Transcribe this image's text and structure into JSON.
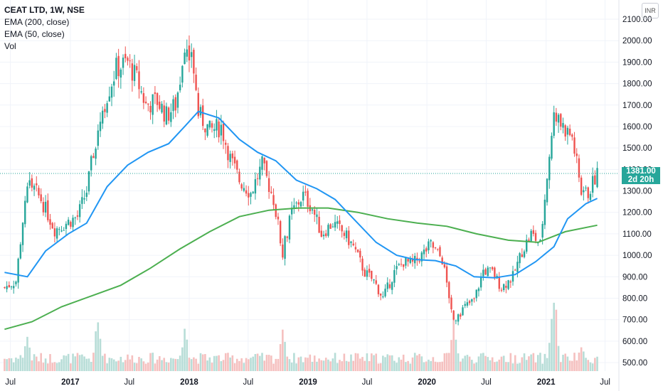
{
  "legend": {
    "title": "CEAT LTD, 1W, NSE",
    "ema200": "EMA (200, close)",
    "ema50": "EMA (50, close)",
    "vol": "Vol"
  },
  "currency": "INR",
  "last_price": {
    "value": "1381.00",
    "countdown": "2d 20h"
  },
  "colors": {
    "up": "#26a69a",
    "down": "#ef5350",
    "ema50": "#2196f3",
    "ema200": "#4caf50",
    "vol_up": "#b7ddd7",
    "vol_down": "#f5c0bf",
    "last_price_line": "#26a69a"
  },
  "chart_data": {
    "type": "candlestick",
    "title": "CEAT LTD, 1W, NSE",
    "ylim": [
      460,
      2140
    ],
    "y_ticks": [
      "2100.00",
      "2000.00",
      "1900.00",
      "1800.00",
      "1700.00",
      "1600.00",
      "1500.00",
      "1400.00",
      "1300.00",
      "1200.00",
      "1100.00",
      "1000.00",
      "900.00",
      "800.00",
      "700.00",
      "600.00",
      "500.00"
    ],
    "x_ticks": [
      "Jul",
      "2017",
      "Jul",
      "2018",
      "Jul",
      "2019",
      "Jul",
      "2020",
      "Jul",
      "2021",
      "Jul"
    ],
    "x_tick_dates": [
      "2016-07-01",
      "2017-01-01",
      "2017-07-01",
      "2018-01-01",
      "2018-07-01",
      "2019-01-01",
      "2019-07-01",
      "2020-01-01",
      "2020-07-01",
      "2021-01-01",
      "2021-07-01"
    ],
    "closes": [
      {
        "date": "2016-06-13",
        "close": 850
      },
      {
        "date": "2016-07-18",
        "close": 880
      },
      {
        "date": "2016-08-22",
        "close": 1350
      },
      {
        "date": "2016-10-03",
        "close": 1260
      },
      {
        "date": "2016-11-14",
        "close": 1120
      },
      {
        "date": "2016-12-19",
        "close": 1150
      },
      {
        "date": "2017-01-23",
        "close": 1180
      },
      {
        "date": "2017-02-20",
        "close": 1300
      },
      {
        "date": "2017-03-27",
        "close": 1600
      },
      {
        "date": "2017-04-24",
        "close": 1750
      },
      {
        "date": "2017-05-22",
        "close": 1870
      },
      {
        "date": "2017-06-26",
        "close": 1900
      },
      {
        "date": "2017-07-24",
        "close": 1820
      },
      {
        "date": "2017-08-21",
        "close": 1700
      },
      {
        "date": "2017-09-25",
        "close": 1720
      },
      {
        "date": "2017-10-23",
        "close": 1650
      },
      {
        "date": "2017-11-20",
        "close": 1700
      },
      {
        "date": "2017-12-18",
        "close": 1950
      },
      {
        "date": "2018-01-08",
        "close": 1960
      },
      {
        "date": "2018-01-29",
        "close": 1660
      },
      {
        "date": "2018-03-05",
        "close": 1580
      },
      {
        "date": "2018-04-09",
        "close": 1600
      },
      {
        "date": "2018-05-07",
        "close": 1450
      },
      {
        "date": "2018-06-04",
        "close": 1350
      },
      {
        "date": "2018-07-09",
        "close": 1290
      },
      {
        "date": "2018-08-13",
        "close": 1420
      },
      {
        "date": "2018-09-17",
        "close": 1260
      },
      {
        "date": "2018-10-15",
        "close": 1020
      },
      {
        "date": "2018-11-12",
        "close": 1200
      },
      {
        "date": "2018-12-17",
        "close": 1280
      },
      {
        "date": "2019-01-14",
        "close": 1220
      },
      {
        "date": "2019-02-11",
        "close": 1100
      },
      {
        "date": "2019-03-18",
        "close": 1150
      },
      {
        "date": "2019-04-22",
        "close": 1100
      },
      {
        "date": "2019-05-20",
        "close": 1040
      },
      {
        "date": "2019-06-24",
        "close": 920
      },
      {
        "date": "2019-07-22",
        "close": 880
      },
      {
        "date": "2019-08-19",
        "close": 800
      },
      {
        "date": "2019-09-23",
        "close": 920
      },
      {
        "date": "2019-10-21",
        "close": 970
      },
      {
        "date": "2019-11-18",
        "close": 960
      },
      {
        "date": "2019-12-16",
        "close": 1000
      },
      {
        "date": "2020-01-13",
        "close": 1050
      },
      {
        "date": "2020-02-17",
        "close": 980
      },
      {
        "date": "2020-03-23",
        "close": 700
      },
      {
        "date": "2020-04-27",
        "close": 760
      },
      {
        "date": "2020-05-25",
        "close": 790
      },
      {
        "date": "2020-06-22",
        "close": 930
      },
      {
        "date": "2020-07-20",
        "close": 920
      },
      {
        "date": "2020-08-17",
        "close": 850
      },
      {
        "date": "2020-09-21",
        "close": 900
      },
      {
        "date": "2020-10-19",
        "close": 1020
      },
      {
        "date": "2020-11-16",
        "close": 1100
      },
      {
        "date": "2020-12-14",
        "close": 1050
      },
      {
        "date": "2021-01-11",
        "close": 1480
      },
      {
        "date": "2021-01-25",
        "close": 1650
      },
      {
        "date": "2021-02-22",
        "close": 1600
      },
      {
        "date": "2021-03-22",
        "close": 1550
      },
      {
        "date": "2021-04-19",
        "close": 1300
      },
      {
        "date": "2021-05-10",
        "close": 1290
      },
      {
        "date": "2021-06-07",
        "close": 1381
      }
    ],
    "ema50": [
      {
        "date": "2016-06-13",
        "value": 920
      },
      {
        "date": "2016-08-22",
        "value": 900
      },
      {
        "date": "2016-10-17",
        "value": 1020
      },
      {
        "date": "2016-12-26",
        "value": 1100
      },
      {
        "date": "2017-02-20",
        "value": 1150
      },
      {
        "date": "2017-04-24",
        "value": 1320
      },
      {
        "date": "2017-06-26",
        "value": 1420
      },
      {
        "date": "2017-08-28",
        "value": 1480
      },
      {
        "date": "2017-10-30",
        "value": 1520
      },
      {
        "date": "2017-12-18",
        "value": 1600
      },
      {
        "date": "2018-01-29",
        "value": 1670
      },
      {
        "date": "2018-04-02",
        "value": 1640
      },
      {
        "date": "2018-06-04",
        "value": 1540
      },
      {
        "date": "2018-07-30",
        "value": 1480
      },
      {
        "date": "2018-09-24",
        "value": 1440
      },
      {
        "date": "2018-11-26",
        "value": 1350
      },
      {
        "date": "2019-01-28",
        "value": 1310
      },
      {
        "date": "2019-03-25",
        "value": 1260
      },
      {
        "date": "2019-05-27",
        "value": 1160
      },
      {
        "date": "2019-07-29",
        "value": 1060
      },
      {
        "date": "2019-09-30",
        "value": 1000
      },
      {
        "date": "2019-11-25",
        "value": 980
      },
      {
        "date": "2020-01-27",
        "value": 975
      },
      {
        "date": "2020-03-30",
        "value": 950
      },
      {
        "date": "2020-05-25",
        "value": 900
      },
      {
        "date": "2020-07-27",
        "value": 895
      },
      {
        "date": "2020-09-28",
        "value": 910
      },
      {
        "date": "2020-11-30",
        "value": 970
      },
      {
        "date": "2021-01-25",
        "value": 1040
      },
      {
        "date": "2021-03-08",
        "value": 1170
      },
      {
        "date": "2021-05-03",
        "value": 1240
      },
      {
        "date": "2021-06-07",
        "value": 1265
      }
    ],
    "ema200": [
      {
        "date": "2016-06-13",
        "value": 655
      },
      {
        "date": "2016-09-05",
        "value": 690
      },
      {
        "date": "2016-12-05",
        "value": 760
      },
      {
        "date": "2017-03-06",
        "value": 810
      },
      {
        "date": "2017-06-05",
        "value": 860
      },
      {
        "date": "2017-09-04",
        "value": 940
      },
      {
        "date": "2017-12-04",
        "value": 1030
      },
      {
        "date": "2018-03-05",
        "value": 1110
      },
      {
        "date": "2018-06-04",
        "value": 1180
      },
      {
        "date": "2018-09-03",
        "value": 1210
      },
      {
        "date": "2018-12-03",
        "value": 1220
      },
      {
        "date": "2019-03-04",
        "value": 1220
      },
      {
        "date": "2019-06-03",
        "value": 1200
      },
      {
        "date": "2019-09-02",
        "value": 1170
      },
      {
        "date": "2019-12-02",
        "value": 1150
      },
      {
        "date": "2020-03-02",
        "value": 1135
      },
      {
        "date": "2020-06-01",
        "value": 1100
      },
      {
        "date": "2020-09-07",
        "value": 1070
      },
      {
        "date": "2020-12-07",
        "value": 1060
      },
      {
        "date": "2021-03-01",
        "value": 1110
      },
      {
        "date": "2021-06-07",
        "value": 1140
      }
    ],
    "volume_peaks": [
      {
        "date": "2016-08-22",
        "rel": 0.45
      },
      {
        "date": "2017-03-27",
        "rel": 0.7
      },
      {
        "date": "2017-12-18",
        "rel": 0.55
      },
      {
        "date": "2018-10-15",
        "rel": 0.5
      },
      {
        "date": "2020-03-23",
        "rel": 0.6
      },
      {
        "date": "2021-01-25",
        "rel": 1.0
      },
      {
        "date": "2021-04-19",
        "rel": 0.35
      }
    ]
  }
}
